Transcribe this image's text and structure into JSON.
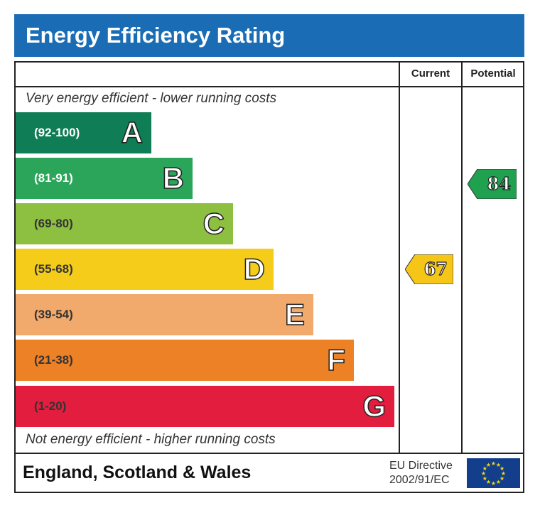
{
  "chart_data": {
    "type": "bar",
    "title": "Energy Efficiency Rating",
    "columns": [
      "Current",
      "Potential"
    ],
    "top_note": "Very energy efficient - lower running costs",
    "bottom_note": "Not energy efficient - higher running costs",
    "bands": [
      {
        "letter": "A",
        "range": "(92-100)",
        "color": "#0f7d55",
        "text_color": "#ffffff"
      },
      {
        "letter": "B",
        "range": "(81-91)",
        "color": "#2aa55a",
        "text_color": "#ffffff"
      },
      {
        "letter": "C",
        "range": "(69-80)",
        "color": "#8dbf41",
        "text_color": "#333333"
      },
      {
        "letter": "D",
        "range": "(55-68)",
        "color": "#f5cc1a",
        "text_color": "#333333"
      },
      {
        "letter": "E",
        "range": "(39-54)",
        "color": "#f2a96c",
        "text_color": "#333333"
      },
      {
        "letter": "F",
        "range": "(21-38)",
        "color": "#ec8126",
        "text_color": "#333333"
      },
      {
        "letter": "G",
        "range": "(1-20)",
        "color": "#e31d3d",
        "text_color": "#333333"
      }
    ],
    "current": {
      "value": "67",
      "band": "D",
      "color": "#f5c518"
    },
    "potential": {
      "value": "84",
      "band": "B",
      "color": "#1fa150"
    }
  },
  "footer": {
    "region": "England, Scotland & Wales",
    "directive_line1": "EU Directive",
    "directive_line2": "2002/91/EC",
    "flag_icon": "eu-flag-icon"
  }
}
